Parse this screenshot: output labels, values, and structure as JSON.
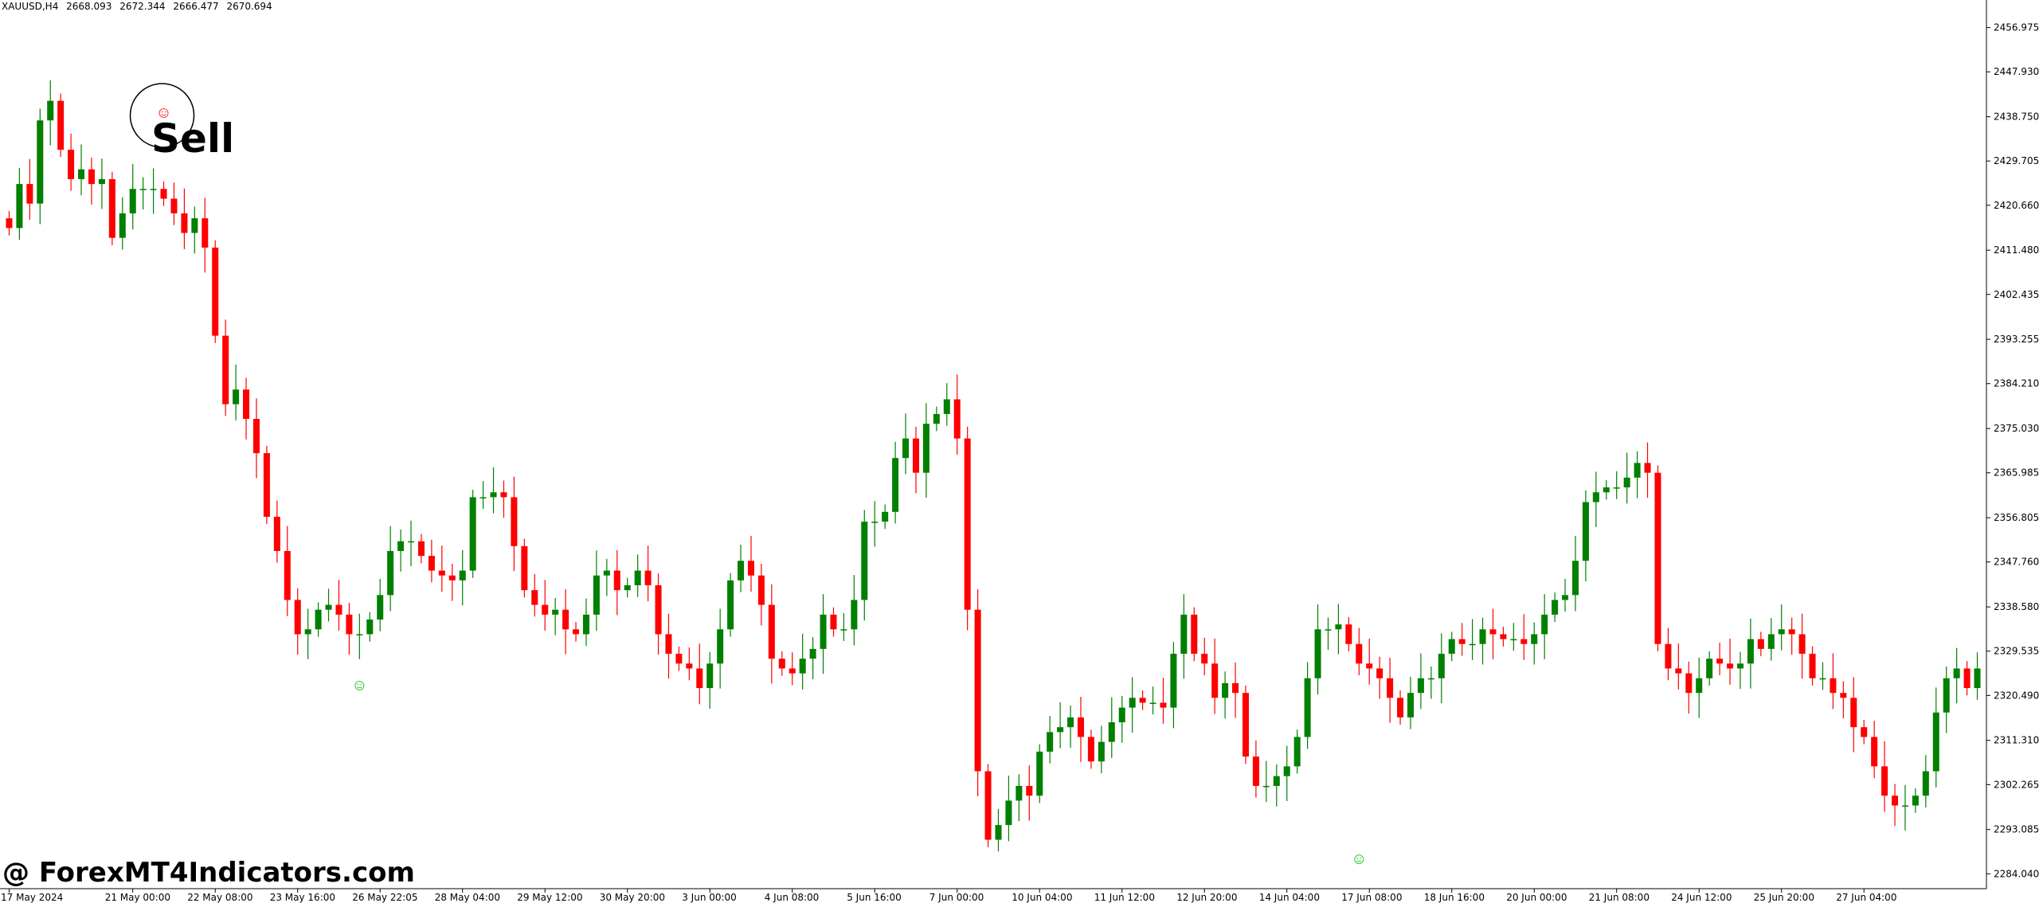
{
  "header": {
    "symbol_timeframe": "XAUUSD,H4",
    "ohlc": [
      "2668.093",
      "2672.344",
      "2666.477",
      "2670.694"
    ]
  },
  "watermark": "@ ForexMT4Indicators.com",
  "signal": {
    "label": "Sell",
    "color": "#ff0000"
  },
  "colors": {
    "bull": "#008000",
    "bear": "#ff0000",
    "axis": "#000000",
    "signal_up": "#33cc33",
    "signal_down": "#ff3333"
  },
  "chart_data": {
    "type": "candlestick",
    "ylim": [
      2281.0,
      2460.0
    ],
    "yticks": [
      "2456.975",
      "2447.930",
      "2438.750",
      "2429.705",
      "2420.660",
      "2411.480",
      "2402.435",
      "2393.255",
      "2384.210",
      "2375.030",
      "2365.985",
      "2356.805",
      "2347.760",
      "2338.580",
      "2329.535",
      "2320.490",
      "2311.310",
      "2302.265",
      "2293.085",
      "2284.040"
    ],
    "xticks": [
      {
        "label": "17 May 2024",
        "index": 0
      },
      {
        "label": "21 May 00:00",
        "index": 12
      },
      {
        "label": "22 May 08:00",
        "index": 20
      },
      {
        "label": "23 May 16:00",
        "index": 28
      },
      {
        "label": "26 May 22:05",
        "index": 36
      },
      {
        "label": "28 May 04:00",
        "index": 44
      },
      {
        "label": "29 May 12:00",
        "index": 52
      },
      {
        "label": "30 May 20:00",
        "index": 60
      },
      {
        "label": "3 Jun 00:00",
        "index": 68
      },
      {
        "label": "4 Jun 08:00",
        "index": 76
      },
      {
        "label": "5 Jun 16:00",
        "index": 84
      },
      {
        "label": "7 Jun 00:00",
        "index": 92
      },
      {
        "label": "10 Jun 04:00",
        "index": 100
      },
      {
        "label": "11 Jun 12:00",
        "index": 108
      },
      {
        "label": "12 Jun 20:00",
        "index": 116
      },
      {
        "label": "14 Jun 04:00",
        "index": 124
      },
      {
        "label": "17 Jun 08:00",
        "index": 132
      },
      {
        "label": "18 Jun 16:00",
        "index": 140
      },
      {
        "label": "20 Jun 00:00",
        "index": 148
      },
      {
        "label": "21 Jun 08:00",
        "index": 156
      },
      {
        "label": "24 Jun 12:00",
        "index": 164
      },
      {
        "label": "25 Jun 20:00",
        "index": 172
      },
      {
        "label": "27 Jun 04:00",
        "index": 180
      }
    ],
    "closes": [
      2416,
      2425,
      2421,
      2438,
      2442,
      2432,
      2426,
      2428,
      2425,
      2426,
      2414,
      2419,
      2424,
      2424,
      2424,
      2422,
      2419,
      2415,
      2418,
      2412,
      2394,
      2380,
      2383,
      2377,
      2370,
      2357,
      2350,
      2340,
      2333,
      2334,
      2338,
      2339,
      2337,
      2333,
      2333,
      2336,
      2341,
      2350,
      2352,
      2352,
      2349,
      2346,
      2345,
      2344,
      2346,
      2361,
      2361,
      2362,
      2361,
      2351,
      2342,
      2339,
      2337,
      2338,
      2334,
      2333,
      2337,
      2345,
      2346,
      2342,
      2343,
      2346,
      2343,
      2333,
      2329,
      2327,
      2326,
      2322,
      2327,
      2334,
      2344,
      2348,
      2345,
      2339,
      2328,
      2326,
      2325,
      2328,
      2330,
      2337,
      2334,
      2334,
      2340,
      2356,
      2356,
      2358,
      2369,
      2373,
      2366,
      2376,
      2378,
      2381,
      2373,
      2338,
      2305,
      2291,
      2294,
      2299,
      2302,
      2300,
      2309,
      2313,
      2314,
      2316,
      2312,
      2307,
      2311,
      2315,
      2318,
      2320,
      2319,
      2319,
      2318,
      2329,
      2337,
      2329,
      2327,
      2320,
      2323,
      2321,
      2308,
      2302,
      2302,
      2304,
      2306,
      2312,
      2324,
      2334,
      2334,
      2335,
      2331,
      2327,
      2326,
      2324,
      2320,
      2316,
      2321,
      2324,
      2324,
      2329,
      2332,
      2331,
      2331,
      2334,
      2333,
      2332,
      2332,
      2331,
      2333,
      2337,
      2340,
      2341,
      2348,
      2360,
      2362,
      2363,
      2363,
      2365,
      2368,
      2366,
      2331,
      2326,
      2325,
      2321,
      2324,
      2328,
      2327,
      2326,
      2327,
      2332,
      2330,
      2333,
      2334,
      2333,
      2329,
      2324,
      2324,
      2321,
      2320,
      2314,
      2312,
      2306,
      2300,
      2298,
      2298,
      2300,
      2305,
      2317,
      2324,
      2326,
      2322,
      2326
    ],
    "y_unit_hint": "price"
  }
}
